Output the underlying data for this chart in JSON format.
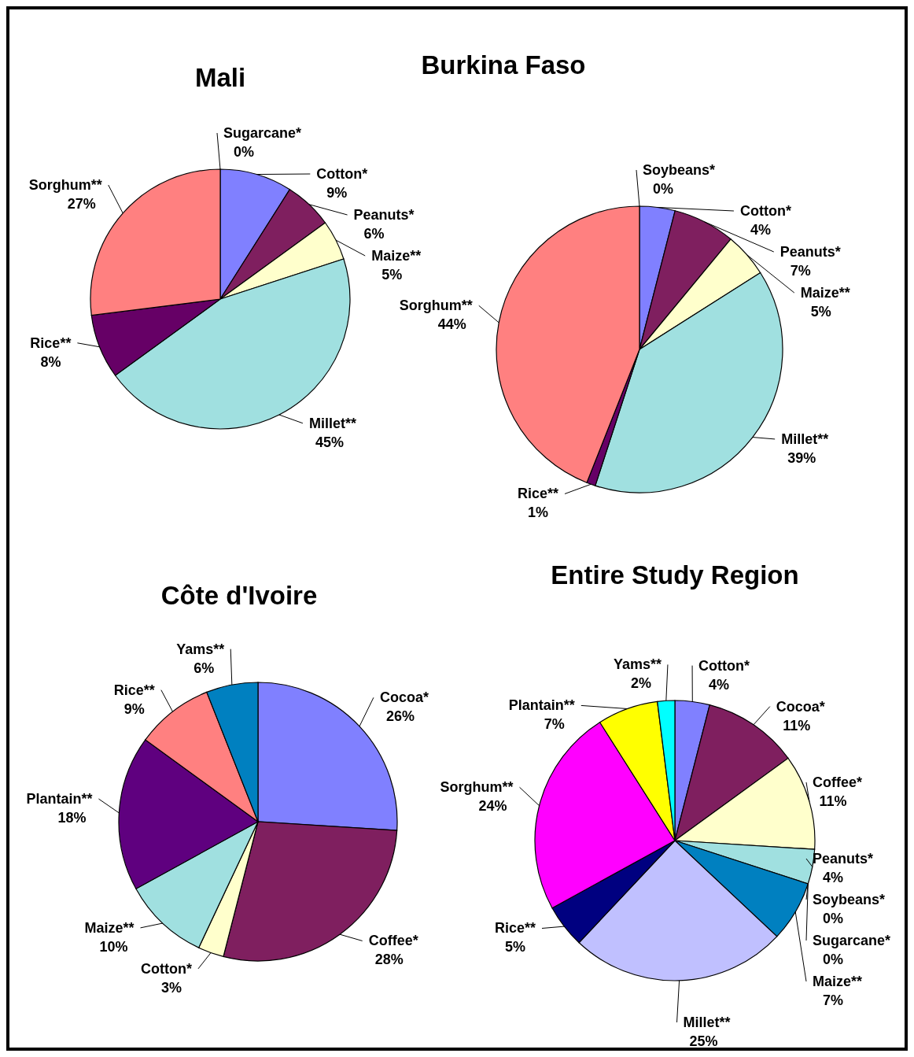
{
  "chart_data": [
    {
      "type": "pie",
      "title": "Mali",
      "categories": [
        "Sugarcane*",
        "Cotton*",
        "Peanuts*",
        "Maize**",
        "Millet**",
        "Rice**",
        "Sorghum**"
      ],
      "values": [
        0,
        9,
        6,
        5,
        45,
        8,
        27
      ],
      "value_labels": [
        "0%",
        "9%",
        "6%",
        "5%",
        "45%",
        "8%",
        "27%"
      ],
      "colors": [
        "#0080c0",
        "#8080ff",
        "#7f1f5f",
        "#ffffcc",
        "#a0e0e0",
        "#660066",
        "#ff8080"
      ]
    },
    {
      "type": "pie",
      "title": "Burkina Faso",
      "categories": [
        "Soybeans*",
        "Cotton*",
        "Peanuts*",
        "Maize**",
        "Millet**",
        "Rice**",
        "Sorghum**"
      ],
      "values": [
        0,
        4,
        7,
        5,
        39,
        1,
        44
      ],
      "value_labels": [
        "0%",
        "4%",
        "7%",
        "5%",
        "39%",
        "1%",
        "44%"
      ],
      "colors": [
        "#c0c0ff",
        "#8080ff",
        "#7f1f5f",
        "#ffffcc",
        "#a0e0e0",
        "#660066",
        "#ff8080"
      ]
    },
    {
      "type": "pie",
      "title": "Côte d'Ivoire",
      "categories": [
        "Cocoa*",
        "Coffee*",
        "Cotton*",
        "Maize**",
        "Plantain**",
        "Rice**",
        "Yams**"
      ],
      "values": [
        26,
        28,
        3,
        10,
        18,
        9,
        6
      ],
      "value_labels": [
        "26%",
        "28%",
        "3%",
        "10%",
        "18%",
        "9%",
        "6%"
      ],
      "colors": [
        "#8080ff",
        "#7f1f5f",
        "#ffffcc",
        "#a0e0e0",
        "#5f007f",
        "#ff8080",
        "#0080c0"
      ]
    },
    {
      "type": "pie",
      "title": "Entire Study Region",
      "categories": [
        "Cotton*",
        "Cocoa*",
        "Coffee*",
        "Peanuts*",
        "Soybeans*",
        "Sugarcane*",
        "Maize**",
        "Millet**",
        "Rice**",
        "Sorghum**",
        "Plantain**",
        "Yams**"
      ],
      "values": [
        4,
        11,
        11,
        4,
        0,
        0,
        7,
        25,
        5,
        24,
        7,
        2
      ],
      "value_labels": [
        "4%",
        "11%",
        "11%",
        "4%",
        "0%",
        "0%",
        "7%",
        "25%",
        "5%",
        "24%",
        "7%",
        "2%"
      ],
      "colors": [
        "#8080ff",
        "#7f1f5f",
        "#ffffcc",
        "#a0e0e0",
        "#ff0000",
        "#00ff00",
        "#0080c0",
        "#c0c0ff",
        "#000080",
        "#ff00ff",
        "#ffff00",
        "#00ffff"
      ]
    }
  ]
}
